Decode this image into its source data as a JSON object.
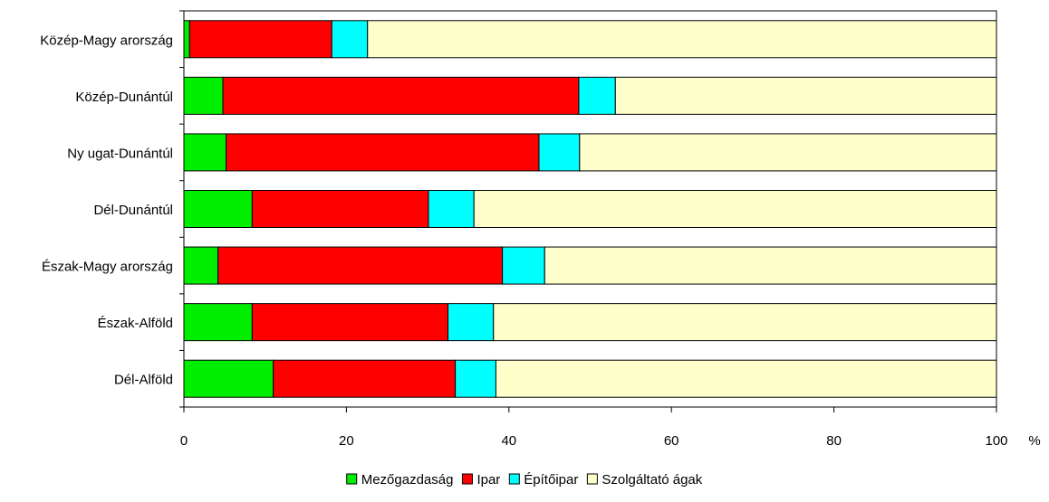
{
  "chart_data": {
    "type": "bar",
    "orientation": "horizontal",
    "stacked": true,
    "categories": [
      "Közép-Magy arország",
      "Közép-Dunántúl",
      "Ny ugat-Dunántúl",
      "Dél-Dunántúl",
      "Észak-Magy arország",
      "Észak-Alföld",
      "Dél-Alföld"
    ],
    "series": [
      {
        "name": "Mezőgazdaság",
        "color": "#00ee00",
        "values": [
          0.7,
          4.8,
          5.2,
          8.4,
          4.2,
          8.4,
          11.0
        ]
      },
      {
        "name": "Ipar",
        "color": "#ff0000",
        "values": [
          17.5,
          43.8,
          38.5,
          21.7,
          35.0,
          24.1,
          22.4
        ]
      },
      {
        "name": "Építőipar",
        "color": "#00ffff",
        "values": [
          4.4,
          4.5,
          5.0,
          5.6,
          5.2,
          5.6,
          5.0
        ]
      },
      {
        "name": "Szolgáltató ágak",
        "color": "#ffffcc",
        "values": [
          77.4,
          46.9,
          51.3,
          64.3,
          55.6,
          61.9,
          61.6
        ]
      }
    ],
    "xlim": [
      0,
      100
    ],
    "xticks": [
      0,
      20,
      40,
      60,
      80,
      100
    ],
    "xlabel": "%",
    "title": "",
    "ylabel": "",
    "grid": false,
    "legend_position": "bottom"
  }
}
